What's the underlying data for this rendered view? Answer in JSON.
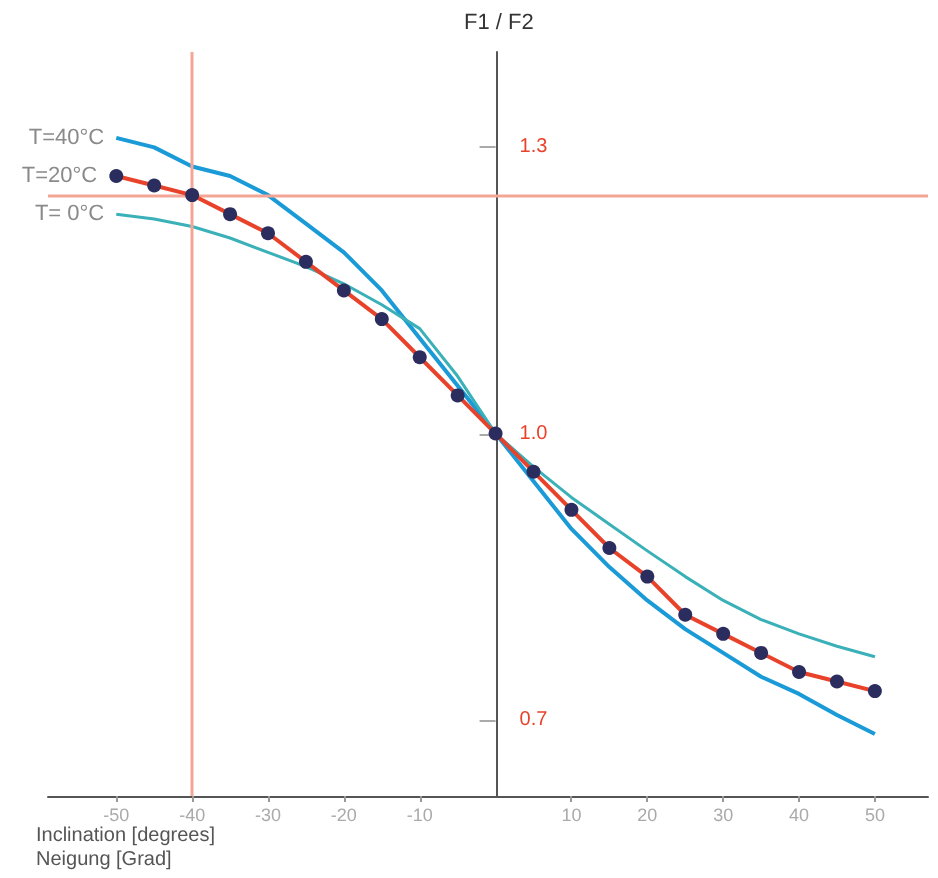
{
  "chart_data": {
    "type": "line",
    "ylabel": "F1 / F2",
    "xlabel": "Inclination [degrees]\nNeigung [Grad]",
    "xlim": [
      -59,
      57
    ],
    "ylim": [
      0.62,
      1.4
    ],
    "xticks": [
      -50,
      -40,
      -30,
      -20,
      -10,
      10,
      20,
      30,
      40,
      50
    ],
    "yticks": [
      {
        "value": 0.7,
        "label": "0.7"
      },
      {
        "value": 1.0,
        "label": "1.0"
      },
      {
        "value": 1.3,
        "label": "1.3"
      }
    ],
    "grid": false,
    "legend": false,
    "line_style": "solid",
    "ref_lines": [
      {
        "axis": "x",
        "value": -40,
        "color": "#f4a595"
      },
      {
        "axis": "y",
        "value": 1.25,
        "color": "#f4a595"
      }
    ],
    "series": [
      {
        "name": "T=40°C",
        "color": "#1a9ad6",
        "marker": "none",
        "x": [
          -50,
          -45,
          -40,
          -35,
          -30,
          -25,
          -20,
          -15,
          -10,
          -5,
          0,
          5,
          10,
          15,
          20,
          25,
          30,
          35,
          40,
          45,
          50
        ],
        "values": [
          1.31,
          1.3,
          1.28,
          1.27,
          1.25,
          1.22,
          1.19,
          1.15,
          1.1,
          1.05,
          1.0,
          0.95,
          0.9,
          0.86,
          0.825,
          0.795,
          0.77,
          0.745,
          0.727,
          0.705,
          0.685
        ]
      },
      {
        "name": "T=20°C",
        "color": "#e8432a",
        "marker": "circle",
        "x": [
          -50,
          -45,
          -40,
          -35,
          -30,
          -25,
          -20,
          -15,
          -10,
          -5,
          0,
          5,
          10,
          15,
          20,
          25,
          30,
          35,
          40,
          45,
          50
        ],
        "values": [
          1.27,
          1.26,
          1.25,
          1.23,
          1.21,
          1.18,
          1.15,
          1.12,
          1.08,
          1.04,
          1.0,
          0.96,
          0.92,
          0.88,
          0.85,
          0.81,
          0.79,
          0.77,
          0.75,
          0.74,
          0.73
        ]
      },
      {
        "name": "T= 0°C",
        "color": "#3ab0b8",
        "marker": "none",
        "x": [
          -50,
          -45,
          -40,
          -35,
          -30,
          -25,
          -20,
          -15,
          -10,
          -5,
          0,
          5,
          10,
          15,
          20,
          25,
          30,
          35,
          40,
          45,
          50
        ],
        "values": [
          1.23,
          1.225,
          1.217,
          1.205,
          1.19,
          1.175,
          1.157,
          1.135,
          1.11,
          1.06,
          1.0,
          0.965,
          0.933,
          0.905,
          0.877,
          0.85,
          0.825,
          0.805,
          0.79,
          0.777,
          0.766
        ]
      }
    ]
  }
}
